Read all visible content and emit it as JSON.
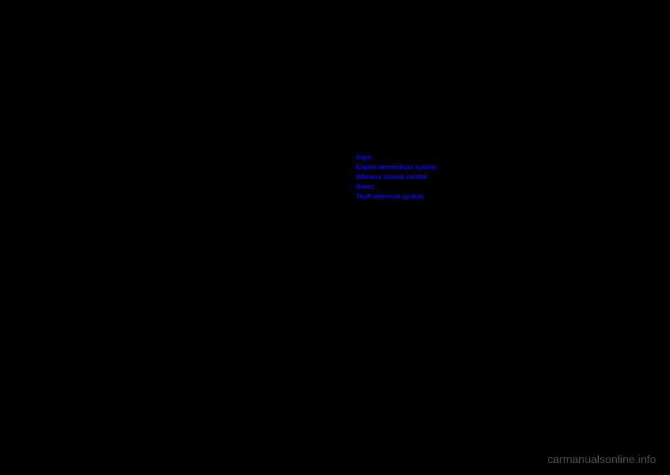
{
  "links": [
    {
      "label": "Keys"
    },
    {
      "label": "Engine immobilizer system"
    },
    {
      "label": "Wireless remote control"
    },
    {
      "label": "Doors"
    },
    {
      "label": "Theft deterrent system"
    }
  ],
  "watermark": "carmanualsonline.info",
  "colors": {
    "background": "#000000",
    "link": "#0000ff",
    "watermark": "#888888"
  }
}
